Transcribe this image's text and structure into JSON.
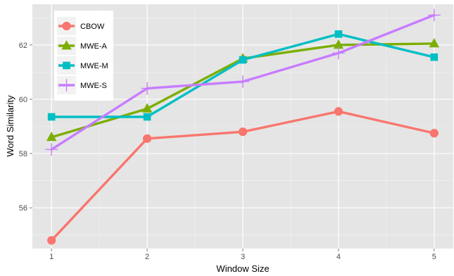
{
  "chart_data": {
    "type": "line",
    "title": "",
    "xlabel": "Window Size",
    "ylabel": "Word Similarity",
    "x": [
      1,
      2,
      3,
      4,
      5
    ],
    "x_ticks": [
      "1",
      "2",
      "3",
      "4",
      "5"
    ],
    "y_ticks": [
      "56",
      "58",
      "60",
      "62"
    ],
    "xlim": [
      0.8,
      5.2
    ],
    "ylim": [
      54.5,
      63.5
    ],
    "grid": true,
    "legend_position": "top-left",
    "series": [
      {
        "name": "CBOW",
        "marker": "circle",
        "color": "#F8766D",
        "values": [
          54.8,
          58.55,
          58.8,
          59.55,
          58.75
        ]
      },
      {
        "name": "MWE-A",
        "marker": "triangle",
        "color": "#7CAE00",
        "values": [
          58.6,
          59.65,
          61.5,
          62.0,
          62.05
        ]
      },
      {
        "name": "MWE-M",
        "marker": "square",
        "color": "#00BFC4",
        "values": [
          59.35,
          59.35,
          61.45,
          62.4,
          61.55
        ]
      },
      {
        "name": "MWE-S",
        "marker": "cross",
        "color": "#C77CFF",
        "values": [
          58.15,
          60.4,
          60.65,
          61.7,
          63.1
        ]
      }
    ]
  }
}
